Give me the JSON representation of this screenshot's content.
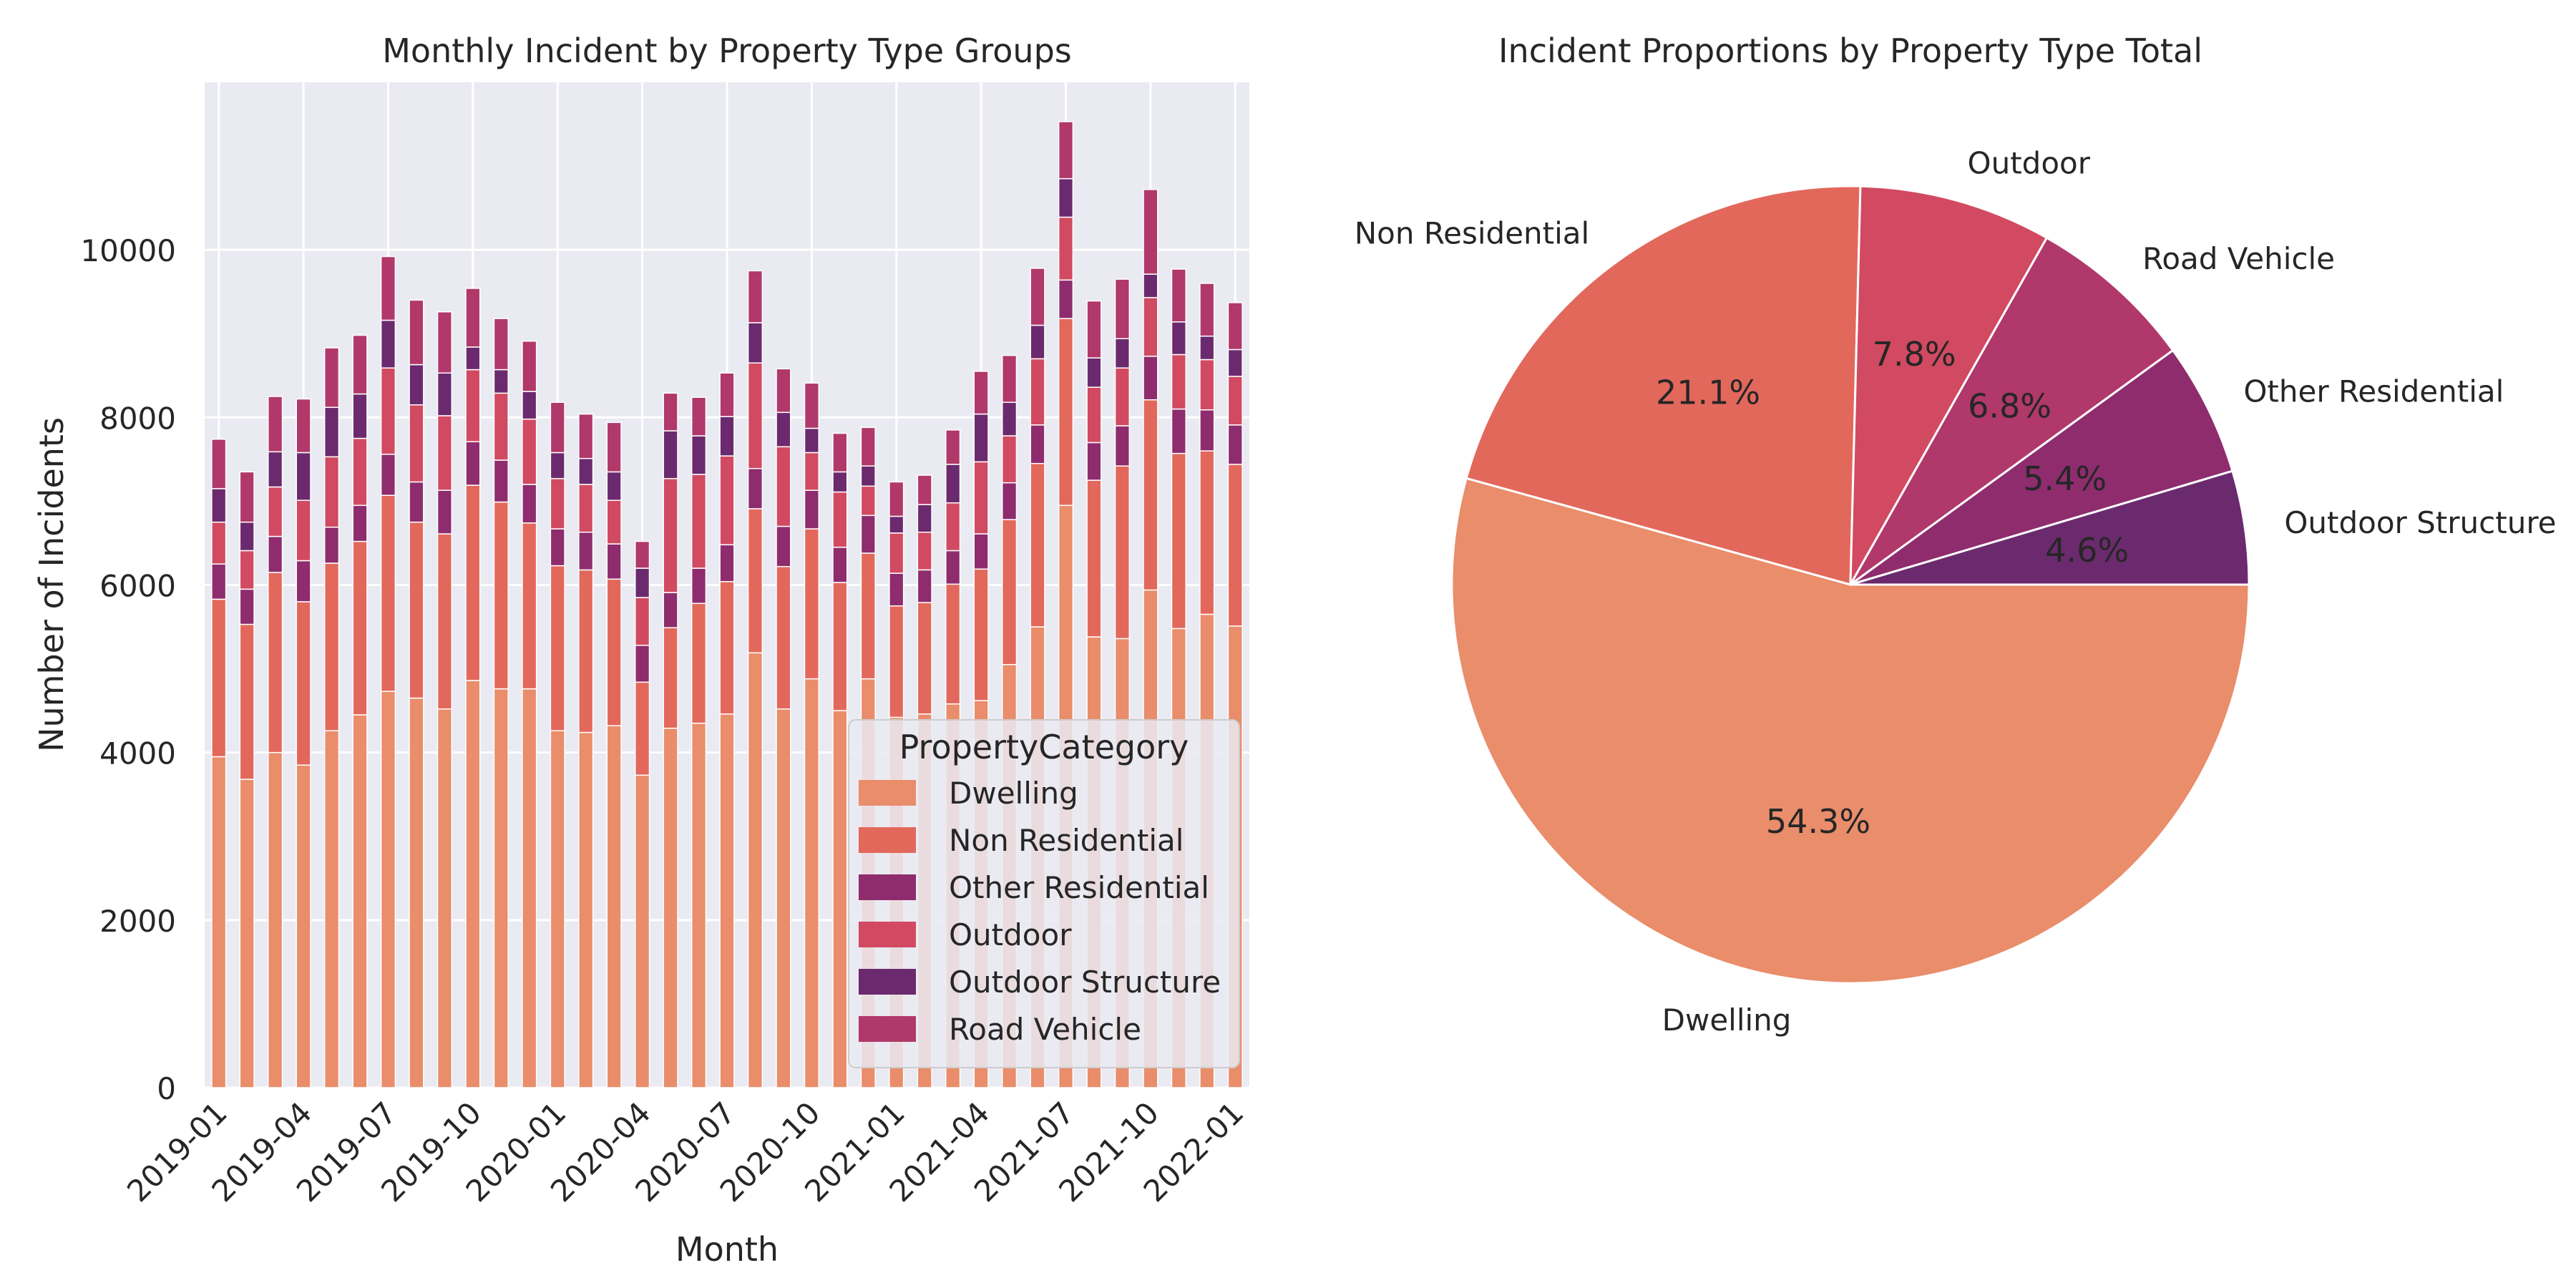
{
  "chart_data": [
    {
      "type": "bar",
      "stacked": true,
      "title": "Monthly Incident by Property Type Groups",
      "xlabel": "Month",
      "ylabel": "Number of Incidents",
      "ylim": [
        0,
        12000
      ],
      "yticks": [
        0,
        2000,
        4000,
        6000,
        8000,
        10000
      ],
      "grid": true,
      "legend": {
        "title": "PropertyCategory",
        "position": "lower-right"
      },
      "categories": [
        "2019-01",
        "2019-02",
        "2019-03",
        "2019-04",
        "2019-05",
        "2019-06",
        "2019-07",
        "2019-08",
        "2019-09",
        "2019-10",
        "2019-11",
        "2019-12",
        "2020-01",
        "2020-02",
        "2020-03",
        "2020-04",
        "2020-05",
        "2020-06",
        "2020-07",
        "2020-08",
        "2020-09",
        "2020-10",
        "2020-11",
        "2020-12",
        "2021-01",
        "2021-02",
        "2021-03",
        "2021-04",
        "2021-05",
        "2021-06",
        "2021-07",
        "2021-08",
        "2021-09",
        "2021-10",
        "2021-11",
        "2021-12",
        "2022-01"
      ],
      "tick_labels": [
        "2019-01",
        "2019-04",
        "2019-07",
        "2019-10",
        "2020-01",
        "2020-04",
        "2020-07",
        "2020-10",
        "2021-01",
        "2021-04",
        "2021-07",
        "2021-10",
        "2022-01"
      ],
      "series": [
        {
          "name": "Dwelling",
          "color": "#e98d6b",
          "values": [
            3950,
            3680,
            4000,
            3850,
            4260,
            4450,
            4730,
            4650,
            4520,
            4860,
            4760,
            4760,
            4260,
            4240,
            4320,
            3730,
            4290,
            4350,
            4460,
            5190,
            4520,
            4880,
            4500,
            4880,
            4420,
            4460,
            4580,
            4620,
            5050,
            5500,
            6950,
            5380,
            5360,
            5940,
            5480,
            5650,
            5510
          ]
        },
        {
          "name": "Non Residential",
          "color": "#e3685c",
          "values": [
            1880,
            1850,
            2150,
            1950,
            2000,
            2070,
            2340,
            2100,
            2090,
            2330,
            2230,
            1980,
            1970,
            1940,
            1750,
            1110,
            1200,
            1430,
            1580,
            1720,
            1700,
            1790,
            1530,
            1500,
            1330,
            1330,
            1430,
            1570,
            1730,
            1950,
            2230,
            1870,
            2060,
            2270,
            2090,
            1950,
            1930
          ]
        },
        {
          "name": "Other Residential",
          "color": "#8e2c6e",
          "values": [
            420,
            420,
            430,
            490,
            430,
            430,
            490,
            480,
            520,
            520,
            500,
            460,
            440,
            450,
            420,
            440,
            420,
            420,
            440,
            480,
            480,
            460,
            420,
            450,
            390,
            390,
            400,
            420,
            440,
            460,
            460,
            450,
            480,
            520,
            530,
            490,
            470
          ]
        },
        {
          "name": "Outdoor",
          "color": "#d14a61",
          "values": [
            500,
            460,
            590,
            720,
            840,
            800,
            1030,
            920,
            890,
            860,
            800,
            780,
            600,
            570,
            520,
            570,
            1360,
            1120,
            1060,
            1260,
            950,
            450,
            660,
            350,
            480,
            450,
            570,
            860,
            560,
            790,
            750,
            660,
            690,
            700,
            650,
            600,
            580
          ]
        },
        {
          "name": "Outdoor Structure",
          "color": "#6b2a6e",
          "values": [
            400,
            340,
            420,
            570,
            590,
            530,
            570,
            480,
            510,
            270,
            280,
            330,
            310,
            310,
            340,
            350,
            570,
            460,
            470,
            480,
            410,
            290,
            240,
            240,
            200,
            330,
            460,
            570,
            400,
            400,
            460,
            350,
            350,
            280,
            390,
            280,
            320
          ]
        },
        {
          "name": "Road Vehicle",
          "color": "#b1386a",
          "values": [
            590,
            600,
            660,
            640,
            710,
            700,
            760,
            770,
            730,
            700,
            610,
            600,
            600,
            530,
            590,
            320,
            450,
            460,
            520,
            620,
            520,
            540,
            460,
            460,
            410,
            350,
            410,
            510,
            560,
            680,
            680,
            680,
            710,
            1010,
            630,
            630,
            560
          ]
        }
      ]
    },
    {
      "type": "pie",
      "title": "Incident Proportions by Property Type Total",
      "slices": [
        {
          "label": "Dwelling",
          "value": 54.3,
          "pct_label": "54.3%",
          "color": "#e98d6b"
        },
        {
          "label": "Non Residential",
          "value": 21.1,
          "pct_label": "21.1%",
          "color": "#e3685c"
        },
        {
          "label": "Outdoor",
          "value": 7.8,
          "pct_label": "7.8%",
          "color": "#d14a61"
        },
        {
          "label": "Road Vehicle",
          "value": 6.8,
          "pct_label": "6.8%",
          "color": "#b1386a"
        },
        {
          "label": "Other Residential",
          "value": 5.4,
          "pct_label": "5.4%",
          "color": "#8e2c6e"
        },
        {
          "label": "Outdoor Structure",
          "value": 4.6,
          "pct_label": "4.6%",
          "color": "#6b2a6e"
        }
      ]
    }
  ]
}
